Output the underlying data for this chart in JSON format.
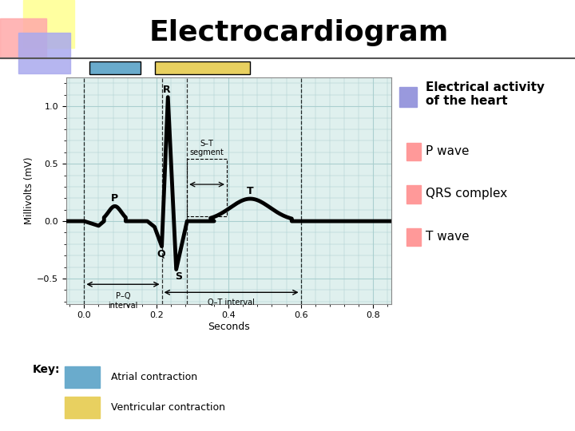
{
  "title": "Electrocardiogram",
  "title_fontsize": 26,
  "title_fontweight": "bold",
  "ylabel": "Millivolts (mV)",
  "xlabel": "Seconds",
  "xlim": [
    -0.05,
    0.85
  ],
  "ylim": [
    -0.72,
    1.25
  ],
  "yticks": [
    -0.5,
    0,
    0.5,
    1.0
  ],
  "xticks": [
    0,
    0.2,
    0.4,
    0.6,
    0.8
  ],
  "grid_color": "#aacfcf",
  "bg_color": "#dff0ee",
  "ecg_color": "#000000",
  "ecg_linewidth": 3.5,
  "legend_square_color": "#9999dd",
  "legend_p_color": "#ff9999",
  "legend_qrs_color": "#ff9999",
  "legend_t_color": "#ff9999",
  "key_blue": "#6aabcc",
  "key_yellow": "#e8d060",
  "fig_bg": "#ffffff",
  "deco_yellow": "#ffffa0",
  "deco_pink": "#ffaaaa",
  "deco_blue": "#aaaaee"
}
